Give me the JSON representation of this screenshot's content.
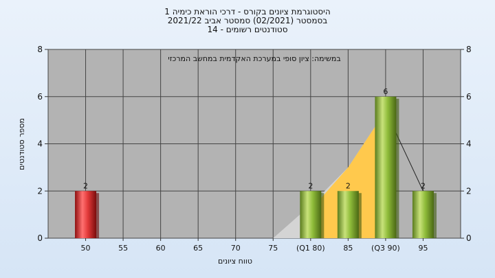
{
  "header": {
    "line1": "היסטוגרמת ציונים בקורס - דרכי הוראת כימיה 1",
    "line2": "בסמסטר  (02/2021)  סמסטר אביב 2021/22",
    "line3": "סטודנטים רשומים - 14"
  },
  "chart_data": {
    "type": "bar",
    "title": "במשימה: ציון סופי במערכת האקדמית במחשב המרכזי",
    "xlabel": "טווח ציונים",
    "ylabel": "מספר סטודנטים",
    "categories": [
      "50",
      "55",
      "60",
      "65",
      "70",
      "75",
      "(Q1 80)",
      "85",
      "(Q3 90)",
      "95"
    ],
    "values": [
      2,
      0,
      0,
      0,
      0,
      0,
      2,
      2,
      6,
      2
    ],
    "data_labels": [
      "2",
      "",
      "",
      "",
      "",
      "",
      "2",
      "2",
      "6",
      "2"
    ],
    "yticks": [
      "0",
      "2",
      "4",
      "6",
      "8"
    ],
    "ylim": [
      0,
      8
    ],
    "grid": true,
    "colors": {
      "failing_bar": "#e23a3a",
      "passing_bar": "#8fbc3a",
      "quartile_area": "#ffc94d",
      "distribution_area": "#d4d4d4",
      "plot_background": "#b3b3b3"
    }
  }
}
